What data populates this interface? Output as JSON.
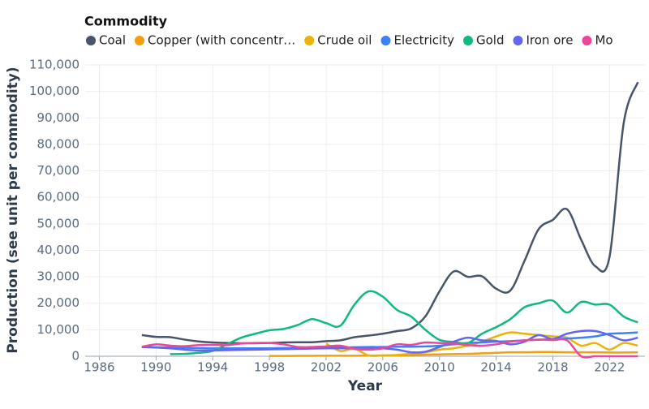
{
  "chart_data": {
    "type": "line",
    "legend_title": "Commodity",
    "x_label": "Year",
    "y_label": "Production (see unit per commodity)",
    "x": [
      1989,
      1990,
      1991,
      1992,
      1993,
      1994,
      1995,
      1996,
      1997,
      1998,
      1999,
      2000,
      2001,
      2002,
      2003,
      2004,
      2005,
      2006,
      2007,
      2008,
      2009,
      2010,
      2011,
      2012,
      2013,
      2014,
      2015,
      2016,
      2017,
      2018,
      2019,
      2020,
      2021,
      2022,
      2023,
      2024
    ],
    "series": [
      {
        "name": "Coal",
        "color": "#475569",
        "values": [
          8000,
          7300,
          7200,
          6300,
          5600,
          5200,
          5000,
          4900,
          4900,
          5000,
          5200,
          5300,
          5300,
          5700,
          6000,
          7200,
          7800,
          8500,
          9500,
          10500,
          15000,
          24500,
          32000,
          30000,
          30200,
          25500,
          24800,
          36000,
          48000,
          51500,
          55500,
          44000,
          34000,
          37500,
          88000,
          103500
        ]
      },
      {
        "name": "Copper (with concentr…",
        "color": "#f59e0b",
        "values": [
          null,
          null,
          null,
          null,
          null,
          null,
          null,
          null,
          null,
          100,
          100,
          150,
          150,
          200,
          200,
          200,
          250,
          300,
          300,
          500,
          600,
          700,
          800,
          900,
          1100,
          1300,
          1500,
          1500,
          1600,
          1600,
          1500,
          1500,
          1500,
          1400,
          1400,
          1500
        ]
      },
      {
        "name": "Crude oil",
        "color": "#eab308",
        "values": [
          null,
          null,
          null,
          null,
          null,
          null,
          null,
          null,
          null,
          null,
          null,
          null,
          null,
          4800,
          2000,
          2800,
          300,
          300,
          500,
          1000,
          1500,
          2500,
          3000,
          4000,
          5500,
          7500,
          9000,
          8500,
          8000,
          7500,
          7000,
          4000,
          5000,
          2500,
          5000,
          4000
        ]
      },
      {
        "name": "Electricity",
        "color": "#3b82f6",
        "values": [
          3500,
          3400,
          3300,
          3200,
          3100,
          3000,
          3000,
          3000,
          3000,
          3000,
          3100,
          3100,
          3200,
          3300,
          3300,
          3400,
          3500,
          3500,
          3600,
          3600,
          3700,
          4000,
          4500,
          5000,
          5200,
          5500,
          5700,
          6000,
          6200,
          6500,
          6700,
          7000,
          7500,
          8500,
          8700,
          9000
        ]
      },
      {
        "name": "Gold",
        "color": "#10b981",
        "values": [
          null,
          null,
          800,
          900,
          1300,
          2000,
          4500,
          7000,
          8500,
          9800,
          10300,
          11800,
          14000,
          12500,
          11500,
          19500,
          24500,
          22500,
          17500,
          15000,
          10000,
          6200,
          5400,
          5000,
          8500,
          11000,
          14000,
          18500,
          20000,
          21000,
          16500,
          20500,
          19500,
          19500,
          15000,
          12800
        ]
      },
      {
        "name": "Iron ore",
        "color": "#6366f1",
        "values": [
          3500,
          3300,
          3000,
          2500,
          2200,
          2200,
          2300,
          2400,
          2500,
          2600,
          2700,
          2800,
          2900,
          3000,
          3000,
          3000,
          3000,
          3000,
          2500,
          1500,
          1700,
          3500,
          5500,
          7000,
          6000,
          5800,
          4500,
          5500,
          8000,
          6500,
          8500,
          9500,
          9500,
          8000,
          6000,
          7000
        ]
      },
      {
        "name": "Mo",
        "color": "#ec4899",
        "values": [
          3600,
          4500,
          4000,
          3800,
          4200,
          4300,
          4200,
          4800,
          5000,
          5000,
          4500,
          3500,
          3500,
          3700,
          4000,
          2800,
          2500,
          3000,
          4500,
          4300,
          5200,
          5000,
          4800,
          4200,
          4000,
          4500,
          5500,
          6000,
          6300,
          6100,
          6000,
          0,
          0,
          0,
          0,
          0
        ]
      }
    ],
    "xlim": [
      1985,
      2024.5
    ],
    "xticks": [
      1986,
      1990,
      1994,
      1998,
      2002,
      2006,
      2010,
      2014,
      2018,
      2022
    ],
    "ylim": [
      0,
      110000
    ],
    "yticks": [
      0,
      {
        "value": 10000,
        "label": "10,000"
      },
      {
        "value": 20000,
        "label": "20,000"
      },
      {
        "value": 30000,
        "label": "30,000"
      },
      {
        "value": 40000,
        "label": "40,000"
      },
      {
        "value": 50000,
        "label": "50,000"
      },
      {
        "value": 60000,
        "label": "60,000"
      },
      {
        "value": 70000,
        "label": "70,000"
      },
      {
        "value": 80000,
        "label": "80,000"
      },
      {
        "value": 90000,
        "label": "90,000"
      },
      {
        "value": 100000,
        "label": "100,000"
      },
      {
        "value": 110000,
        "label": "110,000"
      }
    ],
    "grid": true
  }
}
